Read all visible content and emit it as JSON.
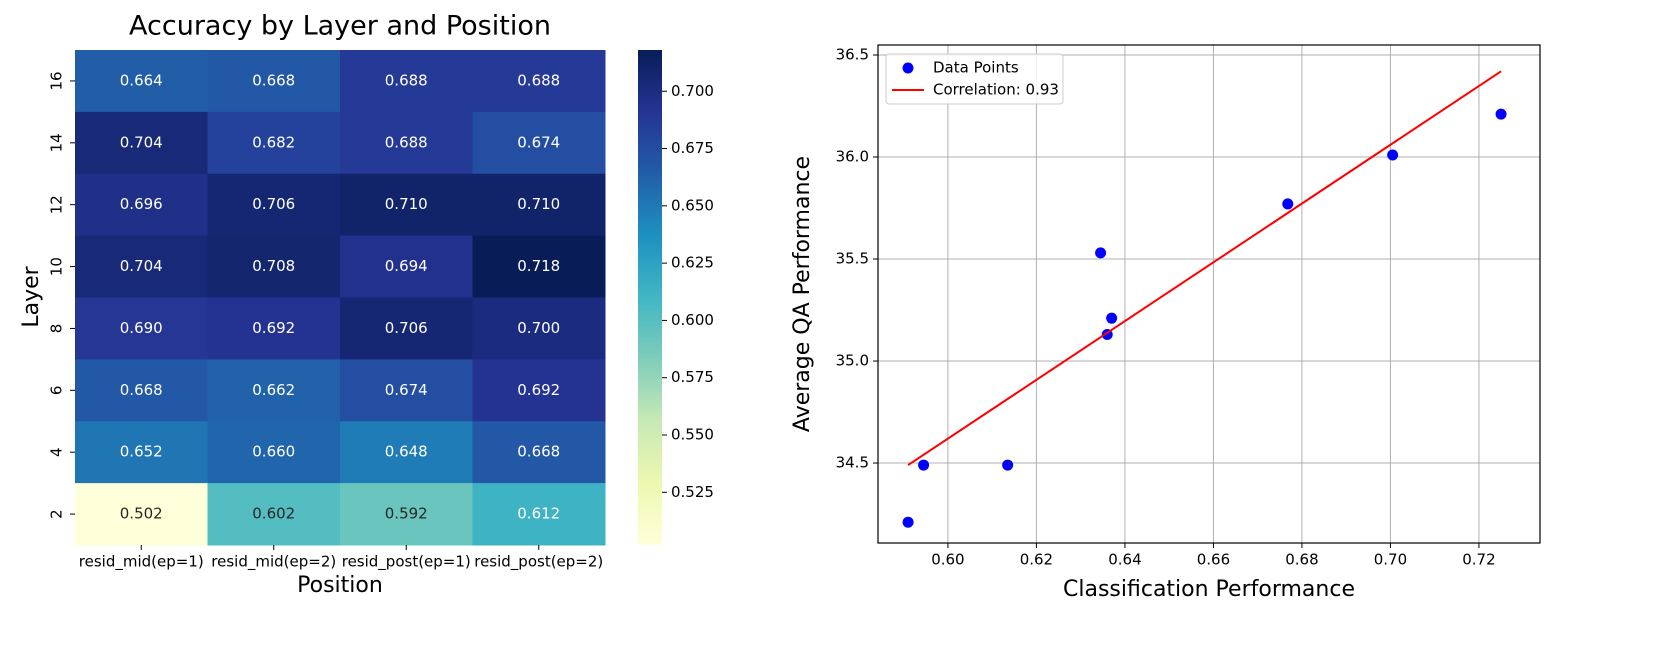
{
  "chart_data": [
    {
      "type": "heatmap",
      "title": "Accuracy by Layer and Position",
      "x_label": "Position",
      "y_label": "Layer",
      "x_categories": [
        "resid_mid(ep=1)",
        "resid_mid(ep=2)",
        "resid_post(ep=1)",
        "resid_post(ep=2)"
      ],
      "y_categories": [
        "16",
        "14",
        "12",
        "10",
        "8",
        "6",
        "4",
        "2"
      ],
      "values": [
        [
          0.664,
          0.668,
          0.688,
          0.688
        ],
        [
          0.704,
          0.682,
          0.688,
          0.674
        ],
        [
          0.696,
          0.706,
          0.71,
          0.71
        ],
        [
          0.704,
          0.708,
          0.694,
          0.718
        ],
        [
          0.69,
          0.692,
          0.706,
          0.7
        ],
        [
          0.668,
          0.662,
          0.674,
          0.692
        ],
        [
          0.652,
          0.66,
          0.648,
          0.668
        ],
        [
          0.502,
          0.602,
          0.592,
          0.612
        ]
      ],
      "value_labels": [
        [
          "0.664",
          "0.668",
          "0.688",
          "0.688"
        ],
        [
          "0.704",
          "0.682",
          "0.688",
          "0.674"
        ],
        [
          "0.696",
          "0.706",
          "0.710",
          "0.710"
        ],
        [
          "0.704",
          "0.708",
          "0.694",
          "0.718"
        ],
        [
          "0.690",
          "0.692",
          "0.706",
          "0.700"
        ],
        [
          "0.668",
          "0.662",
          "0.674",
          "0.692"
        ],
        [
          "0.652",
          "0.660",
          "0.648",
          "0.668"
        ],
        [
          "0.502",
          "0.602",
          "0.592",
          "0.612"
        ]
      ],
      "colormap": "YlGnBu",
      "colorbar_lim": [
        0.502,
        0.718
      ],
      "colorbar_ticks": [
        0.525,
        {
          "value": 0.55,
          "label": "0.550"
        },
        0.575,
        {
          "value": 0.6,
          "label": "0.600"
        },
        0.625,
        {
          "value": 0.65,
          "label": "0.650"
        },
        0.675,
        {
          "value": 0.7,
          "label": "0.700"
        }
      ]
    },
    {
      "type": "scatter",
      "x_label": "Classification Performance",
      "y_label": "Average QA Performance",
      "xlim": [
        0.5842,
        0.7338
      ],
      "ylim": [
        34.108,
        36.549
      ],
      "xticks": [
        {
          "value": 0.6,
          "label": "0.60"
        },
        0.62,
        0.64,
        0.66,
        0.68,
        {
          "value": 0.7,
          "label": "0.70"
        },
        0.72
      ],
      "yticks": [
        34.5,
        {
          "value": 35,
          "label": "35.0"
        },
        35.5,
        {
          "value": 36,
          "label": "36.0"
        },
        36.5
      ],
      "grid": true,
      "legend": "upper-left",
      "series": [
        {
          "name": "Data Points",
          "color": "#0000ff",
          "x": [
            0.591,
            0.5945,
            0.6135,
            0.6345,
            0.636,
            0.637,
            0.6768,
            0.7005,
            0.725
          ],
          "y": [
            34.21,
            34.49,
            34.49,
            35.53,
            35.13,
            35.21,
            35.77,
            36.01,
            36.21
          ]
        },
        {
          "name": "Correlation: 0.93",
          "type": "line",
          "color": "#ff0000",
          "x": [
            0.591,
            0.725
          ],
          "y": [
            34.49,
            36.42
          ]
        }
      ]
    }
  ]
}
